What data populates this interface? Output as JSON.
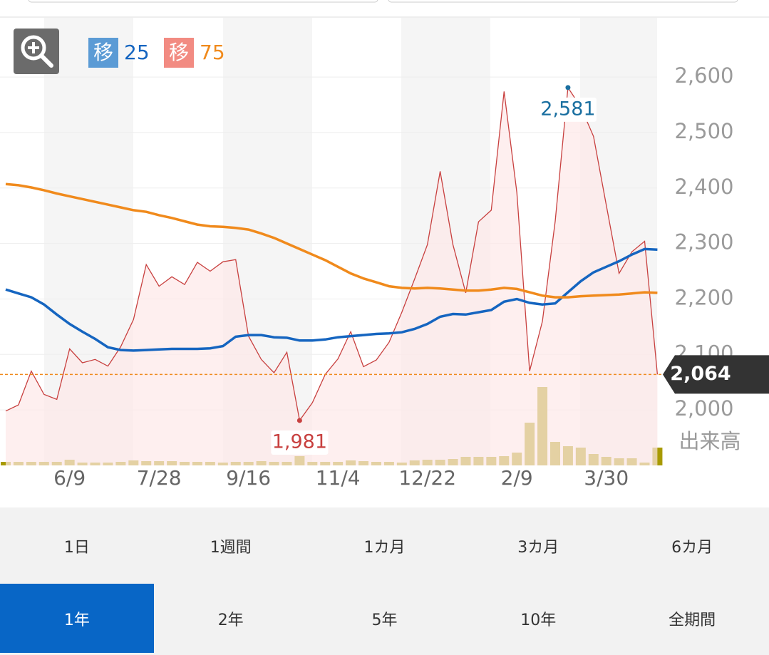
{
  "chart_data": {
    "type": "stock",
    "categories": [
      null,
      null,
      null,
      null,
      null,
      "6/9",
      null,
      null,
      null,
      null,
      null,
      null,
      "7/28",
      null,
      null,
      null,
      null,
      null,
      null,
      "9/16",
      null,
      null,
      null,
      null,
      null,
      null,
      "11/4",
      null,
      null,
      null,
      null,
      null,
      null,
      "12/22",
      null,
      null,
      null,
      null,
      null,
      null,
      "2/9",
      null,
      null,
      null,
      null,
      null,
      null,
      "3/30",
      null,
      null,
      null,
      null
    ],
    "price": {
      "color": "#c8403f",
      "fill": "#fde8e8",
      "values": [
        1998,
        2009,
        2070,
        2028,
        2019,
        2110,
        2085,
        2091,
        2079,
        2114,
        2163,
        2262,
        2223,
        2240,
        2226,
        2266,
        2250,
        2267,
        2271,
        2133,
        2091,
        2067,
        2104,
        1981,
        2013,
        2064,
        2092,
        2141,
        2078,
        2090,
        2122,
        2176,
        2236,
        2298,
        2430,
        2298,
        2211,
        2339,
        2360,
        2574,
        2392,
        2070,
        2160,
        2340,
        2581,
        2546,
        2493,
        2369,
        2246,
        2285,
        2304,
        2064
      ],
      "value_labels": [
        null,
        null,
        null,
        null,
        null,
        null,
        null,
        null,
        null,
        null,
        null,
        null,
        null,
        null,
        null,
        null,
        null,
        null,
        null,
        null,
        null,
        null,
        null,
        "1,981",
        null,
        null,
        null,
        null,
        null,
        null,
        null,
        null,
        null,
        null,
        null,
        null,
        null,
        null,
        null,
        null,
        null,
        null,
        null,
        null,
        "2,581",
        null,
        null,
        null,
        null,
        null,
        null,
        null
      ]
    },
    "moving_averages": [
      {
        "badge": "移",
        "name": "25",
        "color": "#1565c0",
        "badge_color": "#5b9bd5",
        "values": [
          2217,
          2210,
          2203,
          2190,
          2172,
          2155,
          2141,
          2128,
          2113,
          2108,
          2107,
          2108,
          2109,
          2110,
          2110,
          2110,
          2111,
          2115,
          2132,
          2135,
          2135,
          2131,
          2130,
          2125,
          2125,
          2127,
          2131,
          2133,
          2135,
          2137,
          2138,
          2140,
          2146,
          2155,
          2168,
          2173,
          2172,
          2176,
          2180,
          2195,
          2200,
          2193,
          2190,
          2192,
          2212,
          2232,
          2248,
          2258,
          2268,
          2280,
          2290,
          2289
        ]
      },
      {
        "badge": "移",
        "name": "75",
        "color": "#f08a1c",
        "badge_color": "#f28b82",
        "values": [
          2407,
          2405,
          2401,
          2396,
          2390,
          2385,
          2380,
          2375,
          2370,
          2365,
          2360,
          2357,
          2351,
          2346,
          2340,
          2334,
          2331,
          2330,
          2328,
          2325,
          2318,
          2310,
          2300,
          2290,
          2280,
          2270,
          2258,
          2246,
          2237,
          2230,
          2223,
          2220,
          2219,
          2220,
          2219,
          2217,
          2215,
          2215,
          2217,
          2220,
          2218,
          2212,
          2206,
          2203,
          2203,
          2205,
          2206,
          2207,
          2208,
          2210,
          2212,
          2211
        ]
      }
    ],
    "volume": {
      "name": "出来高",
      "color": "#a89a00",
      "values": [
        5,
        5,
        5,
        5,
        5,
        8,
        4,
        4,
        4,
        5,
        7,
        6,
        6,
        6,
        5,
        5,
        5,
        4,
        5,
        5,
        6,
        5,
        5,
        13,
        5,
        5,
        5,
        7,
        6,
        5,
        5,
        4,
        7,
        8,
        8,
        9,
        12,
        12,
        12,
        13,
        18,
        60,
        110,
        33,
        27,
        25,
        16,
        12,
        10,
        10,
        4,
        25
      ]
    },
    "current": {
      "value": 2064,
      "label": "2,064"
    },
    "ylim": [
      1900,
      2690
    ],
    "yticks": [
      {
        "value": 2000,
        "label": "2,000"
      },
      {
        "value": 2100,
        "label": "2,100"
      },
      {
        "value": 2200,
        "label": "2,200"
      },
      {
        "value": 2300,
        "label": "2,300"
      },
      {
        "value": 2400,
        "label": "2,400"
      },
      {
        "value": 2500,
        "label": "2,500"
      },
      {
        "value": 2600,
        "label": "2,600"
      }
    ],
    "grid": true
  },
  "controls": {
    "periods": [
      [
        "1日",
        "1週間",
        "1カ月",
        "3カ月",
        "6カ月"
      ],
      [
        "1年",
        "2年",
        "5年",
        "10年",
        "全期間"
      ]
    ]
  }
}
